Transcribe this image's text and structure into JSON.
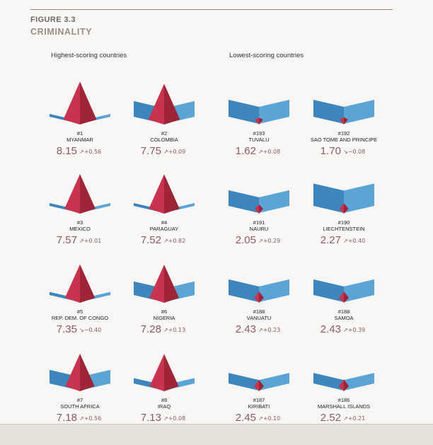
{
  "figure": {
    "label": "FIGURE 3.3",
    "title": "CRIMINALITY"
  },
  "groups": {
    "highest": "Highest-scoring countries",
    "lowest": "Lowest-scoring countries"
  },
  "colors": {
    "pyramid_light": "#c8344f",
    "pyramid_dark": "#9e2437",
    "ribbon_light": "#5aa4d6",
    "ribbon_dark": "#3d86bd",
    "rank_text": "#222222",
    "score_text": "#8c5964",
    "change_text": "#8c5964"
  },
  "chart_data": {
    "type": "pictogram",
    "title": "Criminality",
    "subtitle_left": "Highest-scoring countries",
    "subtitle_right": "Lowest-scoring countries",
    "score_range": [
      0,
      10
    ],
    "score_meaning": "pyramid height encodes criminality score; blue ribbon height encodes resilience-style background level",
    "countries": [
      {
        "rank": "#1",
        "name": "MYANMAR",
        "score": "8.15",
        "arrow": "↗",
        "change": "+0.56",
        "score_value": 8.15,
        "ribbon_level": 0.5
      },
      {
        "rank": "#2",
        "name": "COLOMBIA",
        "score": "7.75",
        "arrow": "↗",
        "change": "+0.09",
        "score_value": 7.75,
        "ribbon_level": 4.6
      },
      {
        "rank": "#193",
        "name": "TUVALU",
        "score": "1.62",
        "arrow": "↗",
        "change": "+0.08",
        "score_value": 1.62,
        "ribbon_level": 5.0
      },
      {
        "rank": "#192",
        "name": "SAO TOME AND PRINCIPE",
        "score": "1.70",
        "arrow": "↘",
        "change": "−0.08",
        "score_value": 1.7,
        "ribbon_level": 5.0
      },
      {
        "rank": "#3",
        "name": "MEXICO",
        "score": "7.57",
        "arrow": "↗",
        "change": "+0.01",
        "score_value": 7.57,
        "ribbon_level": 0.5
      },
      {
        "rank": "#4",
        "name": "PARAGUAY",
        "score": "7.52",
        "arrow": "↗",
        "change": "+0.82",
        "score_value": 7.52,
        "ribbon_level": 0.6
      },
      {
        "rank": "#191",
        "name": "NAURU",
        "score": "2.05",
        "arrow": "↗",
        "change": "+0.29",
        "score_value": 2.05,
        "ribbon_level": 4.6
      },
      {
        "rank": "#190",
        "name": "LIECHTENSTEIN",
        "score": "2.27",
        "arrow": "↗",
        "change": "+0.40",
        "score_value": 2.27,
        "ribbon_level": 6.6
      },
      {
        "rank": "#5",
        "name": "REP. DEM. OF CONGO",
        "score": "7.35",
        "arrow": "↘",
        "change": "−0.40",
        "score_value": 7.35,
        "ribbon_level": 0.9
      },
      {
        "rank": "#6",
        "name": "NIGERIA",
        "score": "7.28",
        "arrow": "↗",
        "change": "+0.13",
        "score_value": 7.28,
        "ribbon_level": 4.0
      },
      {
        "rank": "#188",
        "name": "VANUATU",
        "score": "2.43",
        "arrow": "↗",
        "change": "+0.23",
        "score_value": 2.43,
        "ribbon_level": 4.6
      },
      {
        "rank": "#188",
        "name": "SAMOA",
        "score": "2.43",
        "arrow": "↗",
        "change": "+0.39",
        "score_value": 2.43,
        "ribbon_level": 4.6
      },
      {
        "rank": "#7",
        "name": "SOUTH AFRICA",
        "score": "7.18",
        "arrow": "↗",
        "change": "+0.56",
        "score_value": 7.18,
        "ribbon_level": 4.0
      },
      {
        "rank": "#8",
        "name": "IRAQ",
        "score": "7.13",
        "arrow": "↗",
        "change": "+0.08",
        "score_value": 7.13,
        "ribbon_level": 1.6
      },
      {
        "rank": "#187",
        "name": "KIRIBATI",
        "score": "2.45",
        "arrow": "↗",
        "change": "+0.10",
        "score_value": 2.45,
        "ribbon_level": 3.1
      },
      {
        "rank": "#186",
        "name": "MARSHALL ISLANDS",
        "score": "2.52",
        "arrow": "↗",
        "change": "+0.21",
        "score_value": 2.52,
        "ribbon_level": 3.1
      }
    ]
  }
}
